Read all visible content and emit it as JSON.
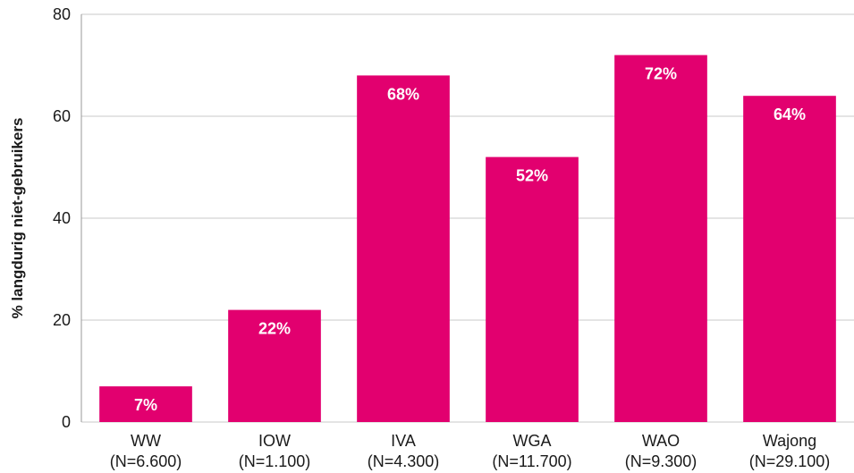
{
  "chart_data": {
    "type": "bar",
    "title": "",
    "xlabel": "",
    "ylabel": "% langdurig niet-gebruikers",
    "ylim": [
      0,
      80
    ],
    "yticks": [
      0,
      20,
      40,
      60,
      80
    ],
    "grid": true,
    "legend": "none",
    "categories": [
      {
        "name": "WW",
        "n": "(N=6.600)"
      },
      {
        "name": "IOW",
        "n": "(N=1.100)"
      },
      {
        "name": "IVA",
        "n": "(N=4.300)"
      },
      {
        "name": "WGA",
        "n": "(N=11.700)"
      },
      {
        "name": "WAO",
        "n": "(N=9.300)"
      },
      {
        "name": "Wajong",
        "n": "(N=29.100)"
      }
    ],
    "values": [
      7,
      22,
      68,
      52,
      72,
      64
    ],
    "data_labels": [
      "7%",
      "22%",
      "68%",
      "52%",
      "72%",
      "64%"
    ],
    "colors": {
      "bar": "#E2006F",
      "grid": "#c8c8c8",
      "axis": "#999999"
    }
  }
}
